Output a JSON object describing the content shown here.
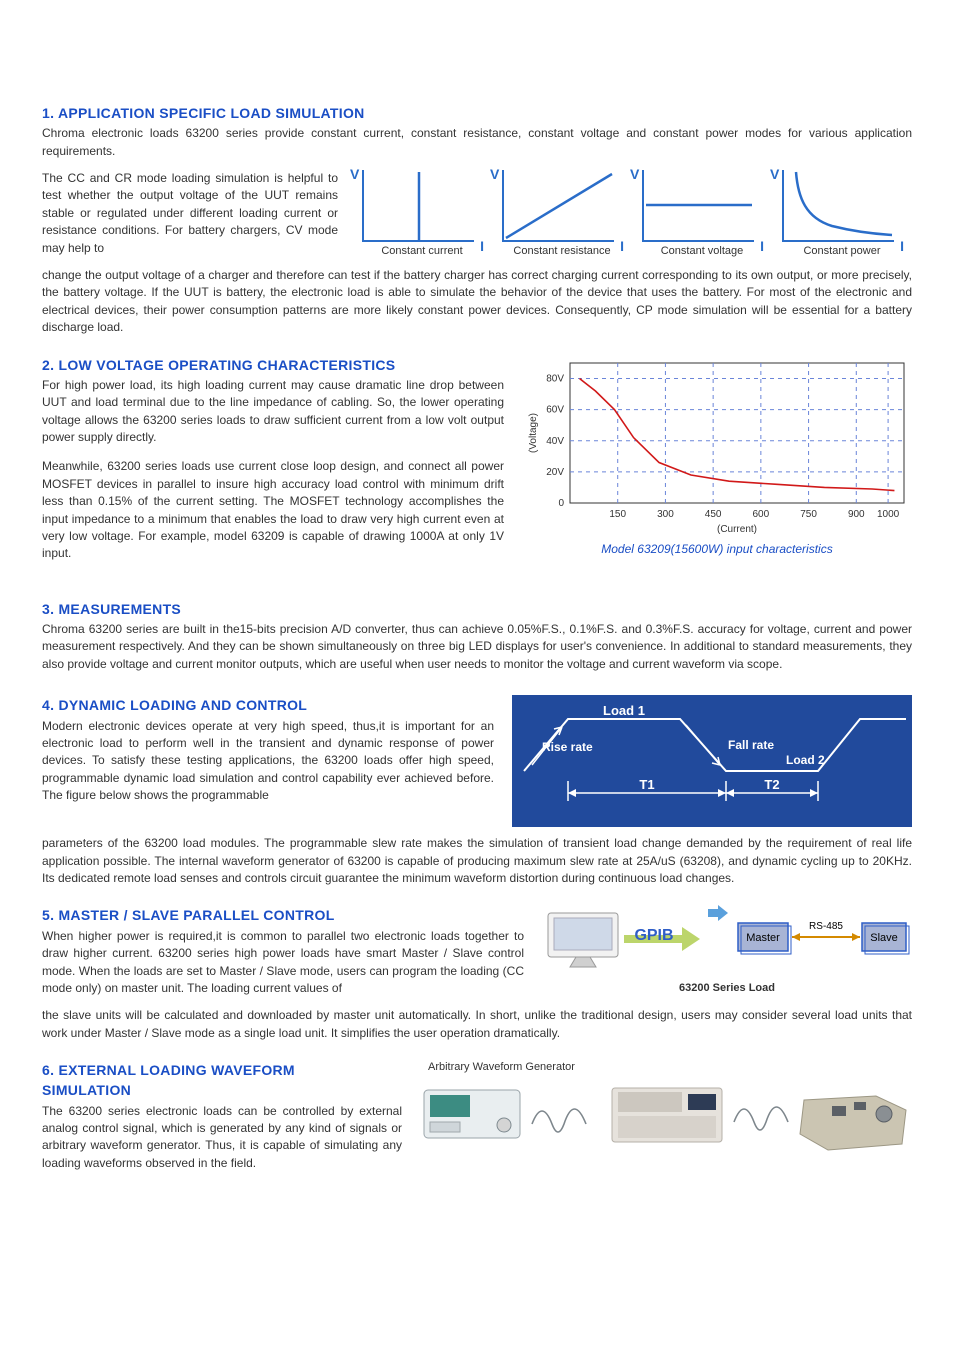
{
  "sec1": {
    "head": "1. APPLICATION SPECIFIC LOAD SIMULATION",
    "p1": "Chroma electronic loads 63200 series provide constant current, constant resistance, constant voltage and constant power modes for various application requirements.",
    "p2a": "The CC and CR mode loading simulation is helpful to test whether the output voltage of the UUT remains stable or regulated under different loading current or resistance conditions.  For battery chargers,  CV mode may help to",
    "p2b": "change the output voltage of a charger  and therefore can test if the battery charger has correct charging current corresponding to its own output, or more precisely, the battery voltage.  If the UUT is battery, the electronic load is able to simulate the behavior of the device that uses the battery. For most of the electronic and electrical devices, their power consumption patterns are more likely constant power devices. Consequently, CP mode simulation will be essential for a battery discharge load.",
    "modes": [
      {
        "label": "Constant current",
        "v": "V",
        "i": "I",
        "kind": "cc"
      },
      {
        "label": "Constant resistance",
        "v": "V",
        "i": "I",
        "kind": "cr"
      },
      {
        "label": "Constant voltage",
        "v": "V",
        "i": "I",
        "kind": "cv"
      },
      {
        "label": "Constant power",
        "v": "V",
        "i": "I",
        "kind": "cp"
      }
    ],
    "curve_color": "#2a6dc9"
  },
  "sec2": {
    "head": "2. LOW VOLTAGE OPERATING CHARACTERISTICS",
    "p1": "For high power load, its high loading current may cause dramatic line drop between UUT and load terminal due to the line impedance of cabling. So, the lower operating voltage allows the 63200 series loads to draw sufficient current from a low volt output power supply directly.",
    "p2": "Meanwhile, 63200 series loads use current close loop design, and connect all power MOSFET devices in parallel to insure high accuracy load control with minimum drift less than 0.15% of the current setting. The MOSFET technology accomplishes the input impedance to a minimum that enables the load to draw very high current even at very low voltage. For example, model 63209 is capable of drawing 1000A at only 1V input.",
    "caption": "Model 63209(15600W) input characteristics",
    "chart": {
      "xlabel": "(Current)",
      "ylabel": "(Voltage)",
      "xticks": [
        150,
        300,
        450,
        600,
        750,
        900,
        1000
      ],
      "yticks": [
        "0",
        "20V",
        "40V",
        "60V",
        "80V"
      ],
      "xlim": [
        0,
        1050
      ],
      "ylim": [
        0,
        90
      ],
      "series": [
        [
          30,
          80
        ],
        [
          80,
          72
        ],
        [
          140,
          60
        ],
        [
          200,
          42
        ],
        [
          280,
          26
        ],
        [
          380,
          18
        ],
        [
          500,
          14
        ],
        [
          650,
          12
        ],
        [
          800,
          10
        ],
        [
          950,
          9
        ],
        [
          1020,
          8
        ]
      ],
      "grid_color": "#6a85d9",
      "series_color": "#d11919",
      "bg": "#ffffff",
      "axis_color": "#333333"
    }
  },
  "sec3": {
    "head": "3. MEASUREMENTS",
    "p": "Chroma 63200 series are built in the15-bits precision A/D converter, thus can achieve 0.05%F.S., 0.1%F.S. and 0.3%F.S. accuracy for voltage, current and power measurement respectively. And they can be shown simultaneously on three big LED displays for user's convenience.  In additional to standard measurements, they also provide voltage and current monitor outputs, which are useful when user needs to monitor the voltage and current waveform via scope."
  },
  "sec4": {
    "head": "4. DYNAMIC LOADING AND CONTROL",
    "p_a": "Modern electronic devices operate at very high speed, thus,it is important for an electronic load to perform well in the transient and dynamic response of power devices. To satisfy these testing applications, the 63200 loads offer high speed, programmable dynamic load simulation and control capability ever achieved before. The figure below shows the programmable",
    "p_b": "parameters of the 63200 load modules.  The programmable slew rate makes the simulation of transient load change demanded by the requirement of real life application possible. The internal waveform generator of 63200 is capable of producing maximum slew rate at 25A/uS (63208), and dynamic cycling up to 20KHz. Its dedicated remote load senses and controls circuit guarantee the minimum waveform distortion during continuous load changes.",
    "labels": {
      "load1": "Load 1",
      "load2": "Load 2",
      "rise": "Rise rate",
      "fall": "Fall rate",
      "t1": "T1",
      "t2": "T2"
    },
    "bg": "#214a9c",
    "line": "#ffffff"
  },
  "sec5": {
    "head": "5. MASTER / SLAVE PARALLEL CONTROL",
    "p_a": "When higher power is required,it is common to parallel two electronic loads together to draw higher current. 63200 series high power loads have smart Master / Slave control mode. When the loads are set to Master / Slave mode, users can program the loading (CC mode only) on master unit. The loading current values of",
    "p_b": "the slave units will be calculated and downloaded by master unit automatically. In short, unlike the traditional design, users may consider several load units that work under Master / Slave mode as a single load unit. It simplifies the user operation dramatically.",
    "labels": {
      "gpib": "GPIB",
      "master": "Master",
      "slave": "Slave",
      "rs485": "RS-485",
      "caption": "63200 Series Load"
    },
    "colors": {
      "gpib_text": "#2f5ec7",
      "box_bg": "#a8b4d5",
      "box_border": "#2f5ec7",
      "monitor": "#c7c7c7",
      "rs_line": "#d48a00"
    }
  },
  "sec6": {
    "head": "6. EXTERNAL LOADING WAVEFORM SIMULATION",
    "p": "The 63200 series electronic loads can be controlled by external analog control signal, which is generated by any kind of signals or arbitrary waveform generator. Thus, it is capable of simulating any loading waveforms observed in the field.",
    "caption": "Arbitrary Waveform Generator",
    "wave_color": "#7d868c"
  }
}
